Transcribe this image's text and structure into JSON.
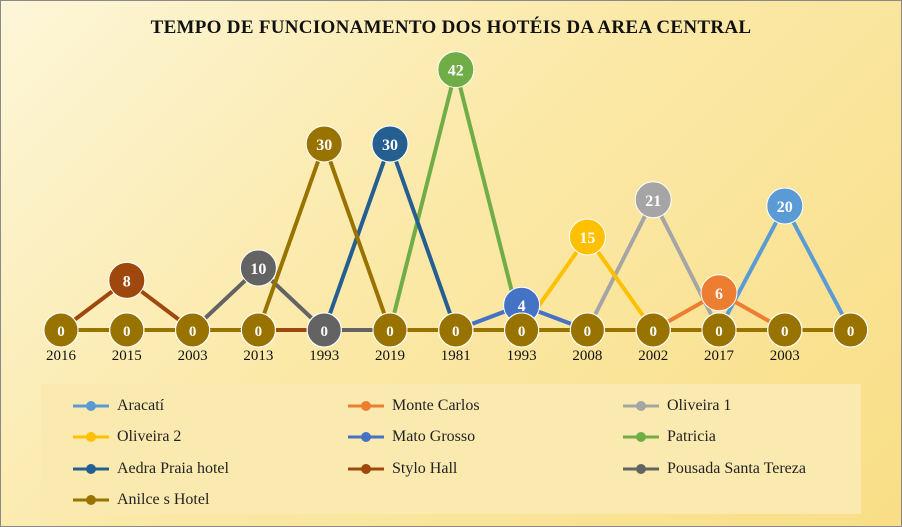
{
  "chart_data": {
    "type": "line",
    "title": "TEMPO DE FUNCIONAMENTO DOS HOTÉIS DA AREA CENTRAL",
    "categories": [
      "2016",
      "2015",
      "2003",
      "2013",
      "1993",
      "2019",
      "1981",
      "1993",
      "2008",
      "2002",
      "2017",
      "2003",
      ""
    ],
    "ylim": [
      0,
      45
    ],
    "grid": false,
    "legend_position": "bottom",
    "series": [
      {
        "name": "Aracatí",
        "color": "#5b9bd5",
        "values": [
          0,
          0,
          0,
          0,
          0,
          0,
          0,
          0,
          0,
          0,
          0,
          20,
          0
        ]
      },
      {
        "name": "Monte Carlos",
        "color": "#ed7d31",
        "values": [
          0,
          0,
          0,
          0,
          0,
          0,
          0,
          0,
          0,
          0,
          6,
          0,
          0
        ]
      },
      {
        "name": "Oliveira 1",
        "color": "#a5a5a5",
        "values": [
          0,
          0,
          0,
          0,
          0,
          0,
          0,
          0,
          0,
          21,
          0,
          0,
          0
        ]
      },
      {
        "name": "Oliveira 2",
        "color": "#ffc000",
        "values": [
          0,
          0,
          0,
          0,
          0,
          0,
          0,
          0,
          15,
          0,
          0,
          0,
          0
        ]
      },
      {
        "name": "Mato Grosso",
        "color": "#4472c4",
        "values": [
          0,
          0,
          0,
          0,
          0,
          0,
          0,
          4,
          0,
          0,
          0,
          0,
          0
        ]
      },
      {
        "name": "Patricia",
        "color": "#70ad47",
        "values": [
          0,
          0,
          0,
          0,
          0,
          0,
          42,
          0,
          0,
          0,
          0,
          0,
          0
        ]
      },
      {
        "name": "Aedra Praia hotel",
        "color": "#255e91",
        "values": [
          0,
          0,
          0,
          0,
          0,
          30,
          0,
          0,
          0,
          0,
          0,
          0,
          0
        ]
      },
      {
        "name": "Stylo Hall",
        "color": "#9e480e",
        "values": [
          0,
          8,
          0,
          0,
          0,
          0,
          0,
          0,
          0,
          0,
          0,
          0,
          0
        ]
      },
      {
        "name": "Pousada Santa Tereza",
        "color": "#636363",
        "values": [
          0,
          0,
          0,
          10,
          0,
          0,
          0,
          0,
          0,
          0,
          0,
          0,
          0
        ]
      },
      {
        "name": "Anilce s Hotel",
        "color": "#997300",
        "values": [
          0,
          0,
          0,
          0,
          30,
          0,
          0,
          0,
          0,
          0,
          0,
          0,
          0
        ]
      }
    ]
  }
}
